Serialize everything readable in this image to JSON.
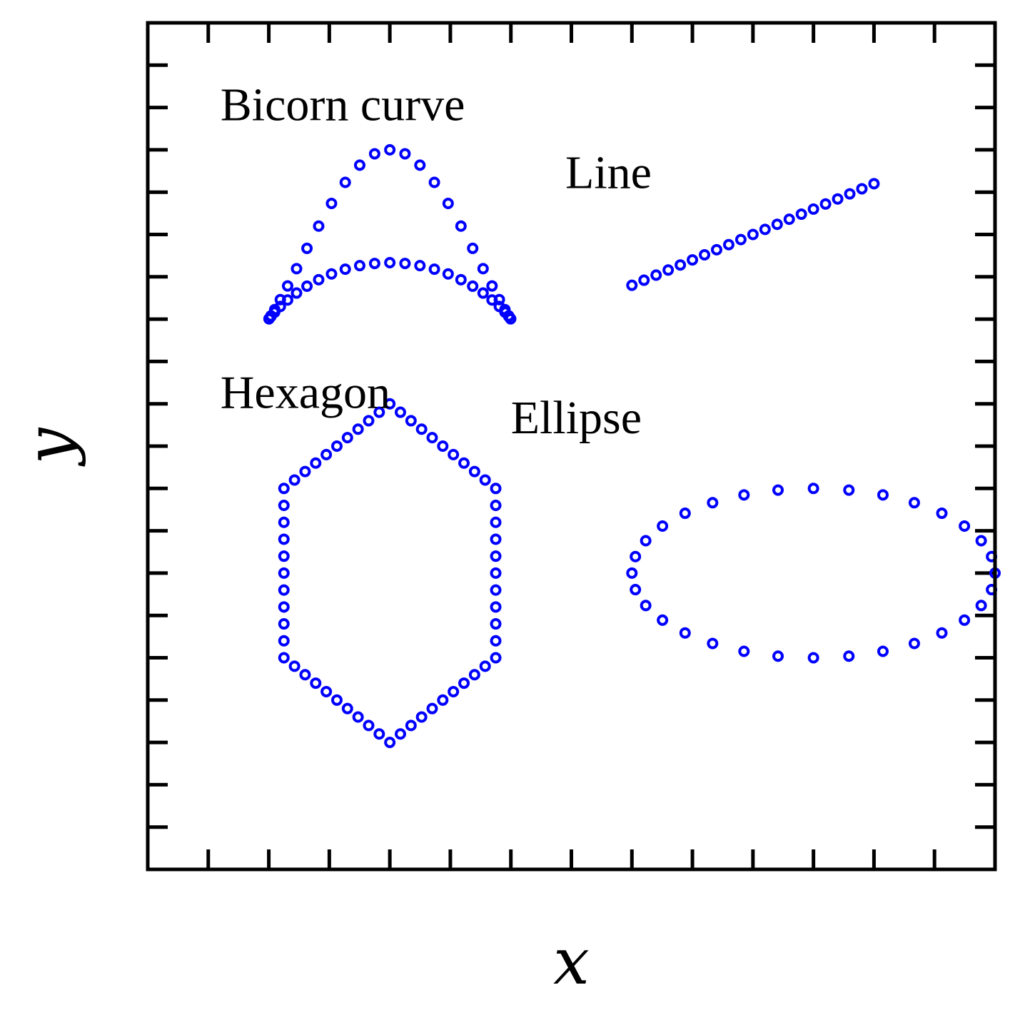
{
  "chart_data": {
    "type": "scatter",
    "title": "",
    "xlabel": "x",
    "ylabel": "y",
    "xlim": [
      -2,
      12
    ],
    "ylim": [
      -8,
      12
    ],
    "x_tick_step": 1,
    "y_tick_step": 1,
    "tick_labels_shown": false,
    "grid": false,
    "legend": "none",
    "marker": "hollow-circle",
    "colors": {
      "marker": "#0000ff",
      "axes": "#000000",
      "background": "#ffffff"
    },
    "annotations": [
      {
        "text": "Bicorn curve",
        "x": -0.8,
        "y": 9.7
      },
      {
        "text": "Line",
        "x": 4.9,
        "y": 8.1
      },
      {
        "text": "Hexagon",
        "x": -0.8,
        "y": 2.9
      },
      {
        "text": "Ellipse",
        "x": 4.0,
        "y": 2.3
      }
    ],
    "series": [
      {
        "shape": "bicorn",
        "center": [
          2,
          5
        ],
        "half_width": 2,
        "points": 50,
        "y_range": [
          5,
          9
        ]
      },
      {
        "shape": "line",
        "x_range": [
          6,
          10
        ],
        "y_range": [
          5.8,
          8.2
        ],
        "points": 21
      },
      {
        "shape": "hexagon",
        "center": [
          2,
          -1
        ],
        "vertices": [
          [
            2,
            3
          ],
          [
            3.75,
            1
          ],
          [
            3.75,
            -3
          ],
          [
            2,
            -5
          ],
          [
            0.25,
            -3
          ],
          [
            0.25,
            1
          ]
        ],
        "points": 60
      },
      {
        "shape": "ellipse",
        "center": [
          9,
          -1
        ],
        "semi_axes": [
          3,
          2
        ],
        "points": 32
      }
    ]
  }
}
